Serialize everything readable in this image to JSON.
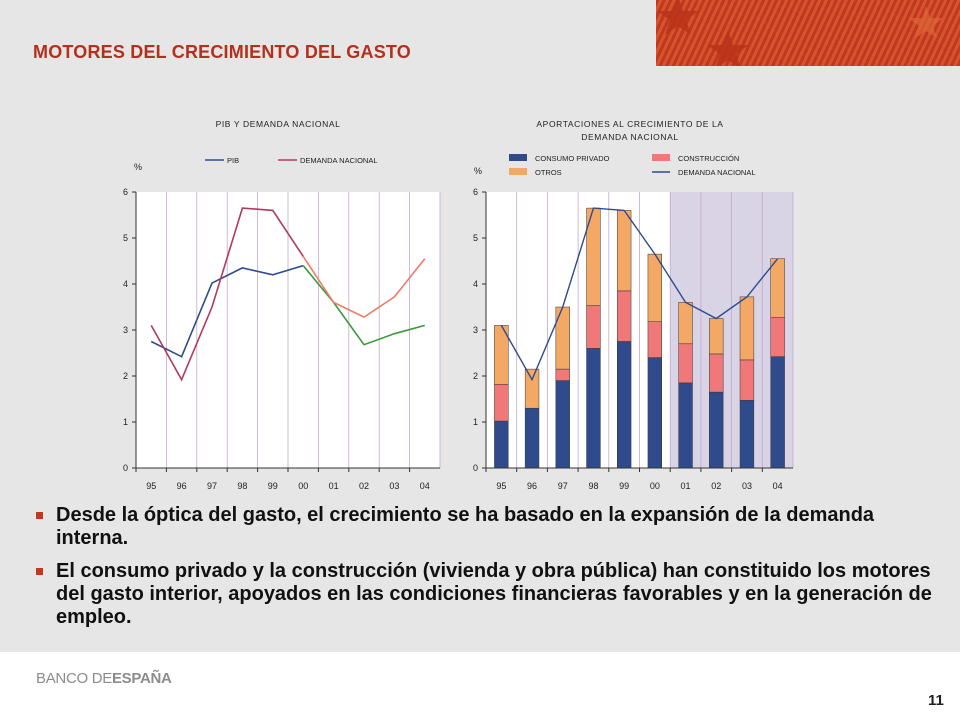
{
  "slide": {
    "title": "MOTORES DEL CRECIMIENTO DEL GASTO",
    "page_number": "11",
    "logo": {
      "part1": "BANCO DE",
      "part2": "ESPAÑA"
    },
    "bullets": [
      "Desde la óptica del gasto, el crecimiento se ha basado en la expansión de la demanda interna.",
      "El consumo privado y la construcción (vivienda y obra pública) han constituido los motores del gasto interior, apoyados en las condiciones financieras favorables y en la generación de empleo."
    ],
    "colors": {
      "accent": "#b2301c",
      "bullet": "#c0391f",
      "background": "#e6e6e6"
    }
  },
  "chart_data": [
    {
      "type": "line",
      "title": "PIB Y DEMANDA NACIONAL",
      "ylabel": "%",
      "ylim": [
        0,
        6
      ],
      "yticks": [
        "0",
        "1",
        "2",
        "3",
        "4",
        "5",
        "6"
      ],
      "categories": [
        "95",
        "96",
        "97",
        "98",
        "99",
        "00",
        "01",
        "02",
        "03",
        "04"
      ],
      "forecast_from_index": 5,
      "series": [
        {
          "name": "PIB",
          "color": "#2f4b8c",
          "forecast_color": "#3a9a3a",
          "values": [
            2.75,
            2.42,
            4.02,
            4.35,
            4.2,
            4.4,
            3.6,
            2.68,
            2.92,
            3.1
          ]
        },
        {
          "name": "DEMANDA NACIONAL",
          "color": "#b23a5a",
          "forecast_color": "#f07a6a",
          "values": [
            3.1,
            1.92,
            3.5,
            5.65,
            5.6,
            4.6,
            3.6,
            3.28,
            3.72,
            4.55
          ]
        }
      ],
      "legend_position": "top"
    },
    {
      "type": "bar",
      "title": "APORTACIONES AL CRECIMIENTO DE LA DEMANDA NACIONAL",
      "title_lines": [
        "APORTACIONES AL CRECIMIENTO DE LA",
        "DEMANDA NACIONAL"
      ],
      "ylabel": "%",
      "ylim": [
        0,
        6
      ],
      "yticks": [
        "0",
        "1",
        "2",
        "3",
        "4",
        "5",
        "6"
      ],
      "stacked": true,
      "categories": [
        "95",
        "96",
        "97",
        "98",
        "99",
        "00",
        "01",
        "02",
        "03",
        "04"
      ],
      "shaded_from_index": 6,
      "series": [
        {
          "name": "CONSUMO PRIVADO",
          "color": "#2f4b8c",
          "values": [
            1.02,
            1.3,
            1.9,
            2.6,
            2.75,
            2.4,
            1.85,
            1.65,
            1.47,
            2.42
          ]
        },
        {
          "name": "CONSTRUCCIÓN",
          "color": "#f07878",
          "values": [
            0.8,
            0.0,
            0.25,
            0.93,
            1.1,
            0.78,
            0.85,
            0.83,
            0.88,
            0.85
          ]
        },
        {
          "name": "OTROS",
          "color": "#f4a866",
          "values": [
            1.28,
            0.85,
            1.35,
            2.12,
            1.75,
            1.47,
            0.9,
            0.77,
            1.37,
            1.28
          ]
        }
      ],
      "line": {
        "name": "DEMANDA NACIONAL",
        "color": "#2f4b8c",
        "values": [
          3.1,
          1.92,
          3.5,
          5.65,
          5.6,
          4.65,
          3.6,
          3.25,
          3.72,
          4.55
        ]
      },
      "legend_position": "top"
    }
  ]
}
